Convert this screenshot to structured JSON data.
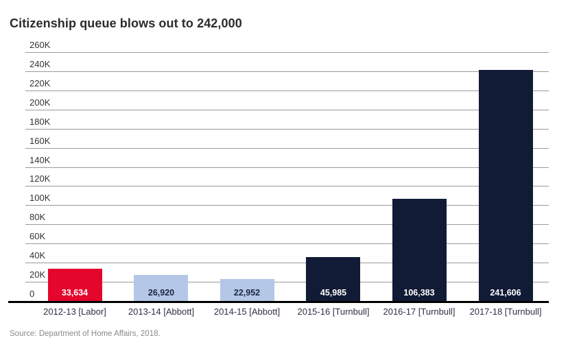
{
  "page": {
    "title": "Citizenship queue blows out to 242,000",
    "source": "Source: Department of Home Affairs, 2018."
  },
  "colors": {
    "background": "#ffffff",
    "title_text": "#2b2b2b",
    "tick_text": "#333333",
    "category_text": "#2c3044",
    "gridline": "#999999",
    "axis": "#000000",
    "source_text": "#8a8a8a",
    "bar_red": "#e4062d",
    "bar_light_blue": "#b4c7e7",
    "bar_navy": "#121b35"
  },
  "chart_data": {
    "type": "bar",
    "title": "Citizenship queue blows out to 242,000",
    "categories": [
      "2012-13 [Labor]",
      "2013-14 [Abbott]",
      "2014-15 [Abbott]",
      "2015-16 [Turnbull]",
      "2016-17 [Turnbull]",
      "2017-18 [Turnbull]"
    ],
    "values": [
      33634,
      26920,
      22952,
      45985,
      106383,
      241606
    ],
    "value_labels": [
      "33,634",
      "26,920",
      "22,952",
      "45,985",
      "106,383",
      "241,606"
    ],
    "bar_colors": [
      "#e4062d",
      "#b4c7e7",
      "#b4c7e7",
      "#121b35",
      "#121b35",
      "#121b35"
    ],
    "value_label_colors": [
      "#ffffff",
      "#1c2742",
      "#1c2742",
      "#ffffff",
      "#ffffff",
      "#ffffff"
    ],
    "xlabel": "",
    "ylabel": "",
    "ylim": [
      0,
      260000
    ],
    "ytick_step": 20000,
    "ytick_labels": [
      "0",
      "20K",
      "40K",
      "60K",
      "80K",
      "100K",
      "120K",
      "140K",
      "160K",
      "180K",
      "200K",
      "220K",
      "240K",
      "260K"
    ],
    "grid": true,
    "legend": "none",
    "source": "Source: Department of Home Affairs, 2018."
  }
}
